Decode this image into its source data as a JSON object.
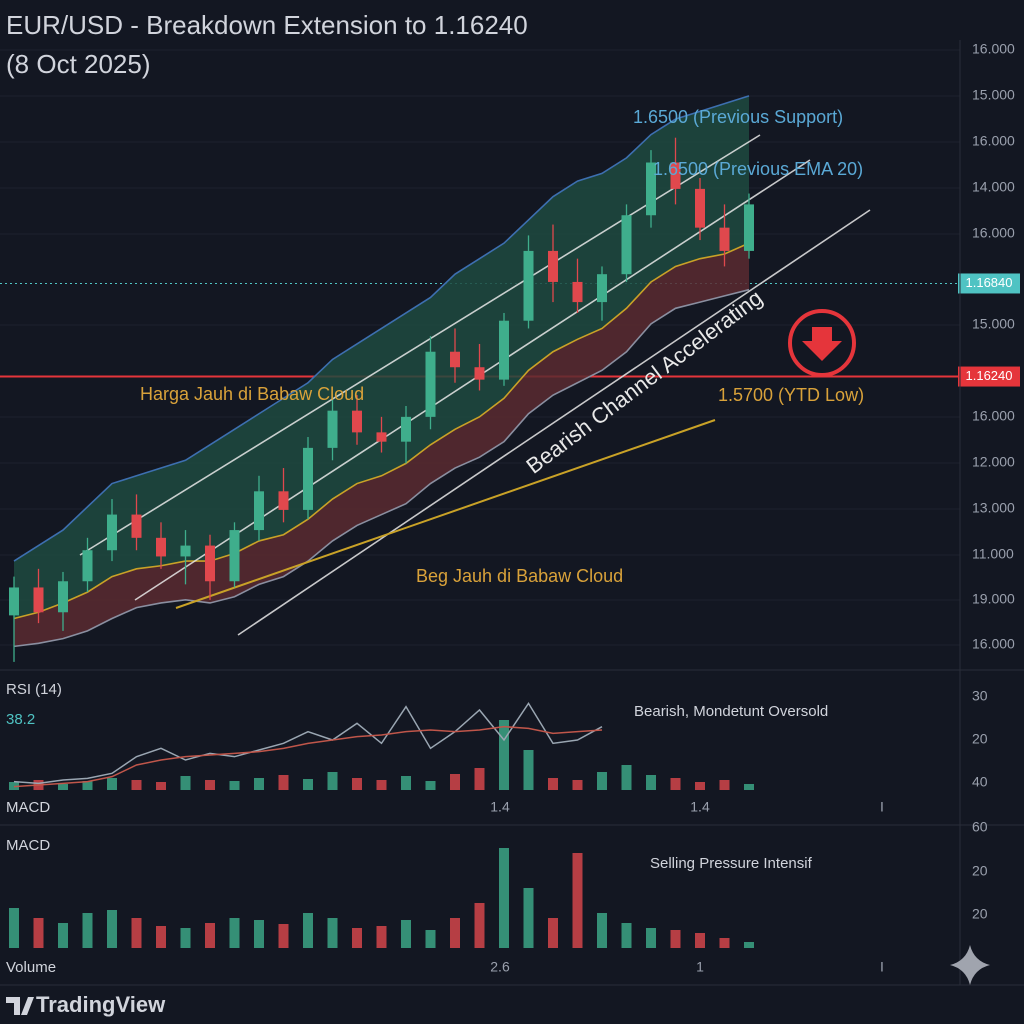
{
  "chart_data": {
    "type": "candlestick",
    "title": "EUR/USD - Breakdown Extension to 1.16240",
    "subtitle": "(8 Oct 2025)",
    "open": [
      1.147,
      1.1488,
      1.1472,
      1.1492,
      1.1512,
      1.1535,
      1.152,
      1.1508,
      1.1515,
      1.1492,
      1.1525,
      1.155,
      1.1538,
      1.1578,
      1.1602,
      1.1588,
      1.1582,
      1.1598,
      1.164,
      1.163,
      1.1622,
      1.166,
      1.1705,
      1.1685,
      1.1672,
      1.169,
      1.1728,
      1.1762,
      1.1745,
      1.172,
      1.1705
    ],
    "high": [
      1.1495,
      1.15,
      1.1498,
      1.152,
      1.1545,
      1.1548,
      1.153,
      1.1525,
      1.1522,
      1.153,
      1.156,
      1.1565,
      1.1585,
      1.161,
      1.1612,
      1.1598,
      1.1605,
      1.165,
      1.1655,
      1.1645,
      1.1665,
      1.1715,
      1.1722,
      1.17,
      1.1695,
      1.1735,
      1.177,
      1.1778,
      1.1752,
      1.1735,
      1.1742
    ],
    "low": [
      1.144,
      1.1465,
      1.146,
      1.1485,
      1.1505,
      1.1512,
      1.15,
      1.149,
      1.148,
      1.1488,
      1.1518,
      1.153,
      1.1532,
      1.157,
      1.158,
      1.1575,
      1.1568,
      1.159,
      1.162,
      1.1615,
      1.1618,
      1.1655,
      1.1672,
      1.1665,
      1.166,
      1.1685,
      1.172,
      1.1735,
      1.1712,
      1.1695,
      1.17
    ],
    "close": [
      1.1488,
      1.1472,
      1.1492,
      1.1512,
      1.1535,
      1.152,
      1.1508,
      1.1515,
      1.1492,
      1.1525,
      1.155,
      1.1538,
      1.1578,
      1.1602,
      1.1588,
      1.1582,
      1.1598,
      1.164,
      1.163,
      1.1622,
      1.166,
      1.1705,
      1.1685,
      1.1672,
      1.169,
      1.1728,
      1.1762,
      1.1745,
      1.172,
      1.1705,
      1.1735
    ],
    "cloud_upper": [
      1.1505,
      1.1515,
      1.1525,
      1.154,
      1.1555,
      1.156,
      1.1565,
      1.157,
      1.158,
      1.159,
      1.16,
      1.161,
      1.162,
      1.1635,
      1.1645,
      1.1655,
      1.1665,
      1.1675,
      1.169,
      1.17,
      1.171,
      1.1725,
      1.174,
      1.175,
      1.1755,
      1.1765,
      1.178,
      1.179,
      1.1795,
      1.18,
      1.1805
    ],
    "ema": [
      1.1468,
      1.1472,
      1.1478,
      1.1485,
      1.1495,
      1.15,
      1.1502,
      1.1505,
      1.1505,
      1.151,
      1.1518,
      1.1522,
      1.1532,
      1.1545,
      1.1555,
      1.156,
      1.1568,
      1.158,
      1.159,
      1.1598,
      1.161,
      1.1628,
      1.164,
      1.1648,
      1.1655,
      1.1668,
      1.1685,
      1.1695,
      1.17,
      1.1703,
      1.171
    ],
    "cloud_lower": [
      1.145,
      1.1452,
      1.1455,
      1.146,
      1.1468,
      1.1475,
      1.1478,
      1.148,
      1.1478,
      1.1482,
      1.149,
      1.1495,
      1.1505,
      1.1518,
      1.1528,
      1.1535,
      1.1542,
      1.1555,
      1.1565,
      1.1572,
      1.1582,
      1.16,
      1.1612,
      1.162,
      1.1628,
      1.164,
      1.1658,
      1.1668,
      1.1672,
      1.1676,
      1.168
    ],
    "ylim": [
      1.1438,
      1.1841
    ],
    "colors": {
      "up": "#3fae8c",
      "down": "#e0484d",
      "cloud_upper": "#3d6fb0",
      "ema": "#c9a227",
      "cloud_lower": "#8a8fa0"
    },
    "price_lines": [
      {
        "value": 1.1684,
        "label": "1.16840",
        "color": "#4fc3c3"
      },
      {
        "value": 1.1624,
        "label": "1.16240",
        "color": "#e5353b"
      }
    ],
    "price_axis_labels": [
      "16.000",
      "15.000",
      "16.000",
      "14.000",
      "16.000",
      "15.000",
      "16.000",
      "12.000",
      "13.000",
      "11.000",
      "19.000",
      "16.000"
    ],
    "annotations": [
      "1.6500 (Previous Support)",
      "1.6500 (Previous EMA 20)",
      "Harga Jauh di Babaw Cloud",
      "Bearish Channel Accelerating",
      "1.5700 (YTD Low)",
      "Beg Jauh di Babaw Cloud"
    ]
  },
  "rsi": {
    "label": "RSI (14)",
    "value": 38.2,
    "note": "Bearish, Mondetunt Oversold",
    "ylim": [
      20,
      80
    ],
    "line": [
      25,
      24,
      26,
      27,
      30,
      40,
      45,
      38,
      42,
      40,
      44,
      48,
      55,
      50,
      60,
      48,
      70,
      45,
      55,
      68,
      50,
      72,
      48,
      50,
      58,
      null,
      null,
      null,
      null,
      null,
      null
    ],
    "signal": [
      22,
      23,
      24,
      25,
      28,
      35,
      38,
      40,
      41,
      42,
      43,
      45,
      48,
      50,
      52,
      53,
      55,
      56,
      55,
      56,
      58,
      57,
      54,
      55,
      56,
      null,
      null,
      null,
      null,
      null,
      null
    ],
    "histogram": [
      8,
      10,
      6,
      9,
      12,
      10,
      8,
      14,
      10,
      9,
      12,
      15,
      11,
      18,
      12,
      10,
      14,
      9,
      16,
      22,
      70,
      40,
      12,
      10,
      18,
      25,
      15,
      12,
      8,
      10,
      6
    ],
    "axis_labels": [
      30,
      20,
      40
    ],
    "footer_label": "MACD",
    "x_labels": [
      1.4,
      1.4
    ],
    "cursor": "I"
  },
  "macd": {
    "label": "MACD",
    "note": "Selling Pressure Intensif",
    "volume": [
      40,
      30,
      25,
      35,
      38,
      30,
      22,
      20,
      25,
      30,
      28,
      24,
      35,
      30,
      20,
      22,
      28,
      18,
      30,
      45,
      100,
      60,
      30,
      95,
      35,
      25,
      20,
      18,
      15,
      10,
      6
    ],
    "axis_labels": [
      60,
      20,
      20
    ],
    "footer_label": "Volume",
    "x_labels": [
      2.6,
      1.0
    ],
    "cursor": "I"
  },
  "brand": "TradingView"
}
